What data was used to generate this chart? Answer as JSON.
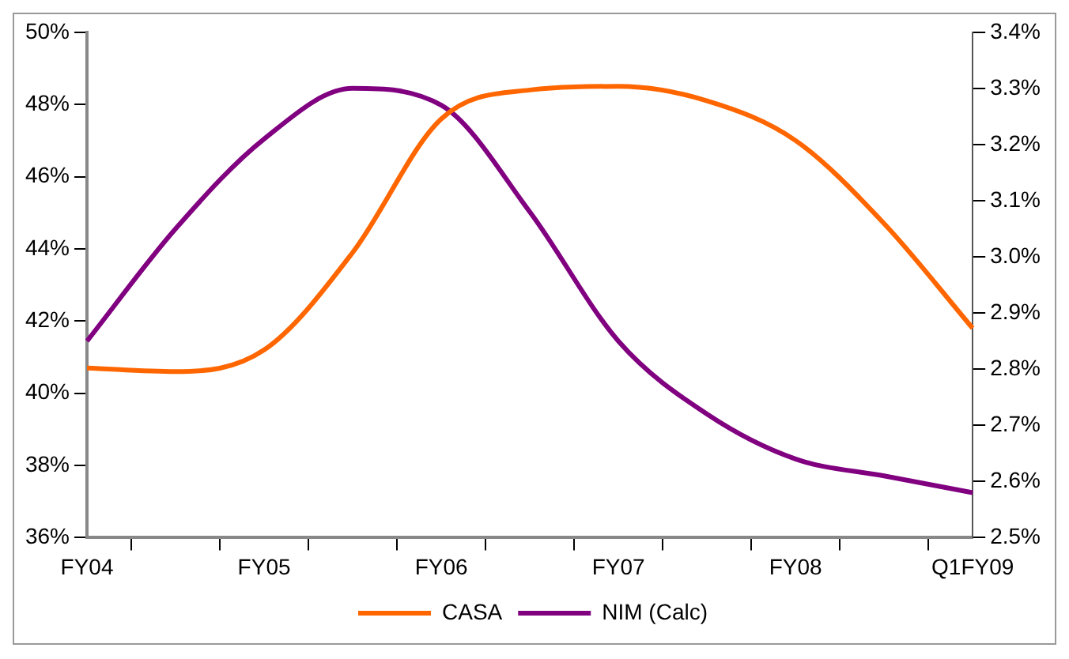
{
  "chart_data": {
    "type": "line",
    "categories": [
      "FY04",
      null,
      "FY05",
      null,
      "FY06",
      null,
      "FY07",
      null,
      "FY08",
      null,
      "Q1FY09"
    ],
    "series": [
      {
        "name": "CASA",
        "color": "#ff6600",
        "values": [
          40.7,
          40.6,
          41.2,
          43.9,
          47.6,
          48.4,
          48.5,
          48.1,
          47.0,
          44.7,
          41.8
        ]
      },
      {
        "name": "NIM (Calc)",
        "color": "#800080",
        "axis": "y2",
        "values": [
          2.85,
          3.05,
          3.21,
          3.3,
          3.27,
          3.08,
          2.85,
          2.72,
          2.64,
          2.61,
          2.58
        ]
      }
    ],
    "ylim": [
      36,
      50
    ],
    "yticks": [
      {
        "value": 36,
        "label": "36%"
      },
      {
        "value": 38,
        "label": "38%"
      },
      {
        "value": 40,
        "label": "40%"
      },
      {
        "value": 42,
        "label": "42%"
      },
      {
        "value": 44,
        "label": "44%"
      },
      {
        "value": 46,
        "label": "46%"
      },
      {
        "value": 48,
        "label": "48%"
      },
      {
        "value": 50,
        "label": "50%"
      }
    ],
    "y2lim": [
      2.5,
      3.4
    ],
    "y2ticks": [
      {
        "value": 2.5,
        "label": "2.5%"
      },
      {
        "value": 2.6,
        "label": "2.6%"
      },
      {
        "value": 2.7,
        "label": "2.7%"
      },
      {
        "value": 2.8,
        "label": "2.8%"
      },
      {
        "value": 2.9,
        "label": "2.9%"
      },
      {
        "value": 3.0,
        "label": "3.0%"
      },
      {
        "value": 3.1,
        "label": "3.1%"
      },
      {
        "value": 3.2,
        "label": "3.2%"
      },
      {
        "value": 3.3,
        "label": "3.3%"
      },
      {
        "value": 3.4,
        "label": "3.4%"
      }
    ],
    "grid": false,
    "legend": "bottom",
    "marker": "none",
    "line_style": "solid"
  }
}
